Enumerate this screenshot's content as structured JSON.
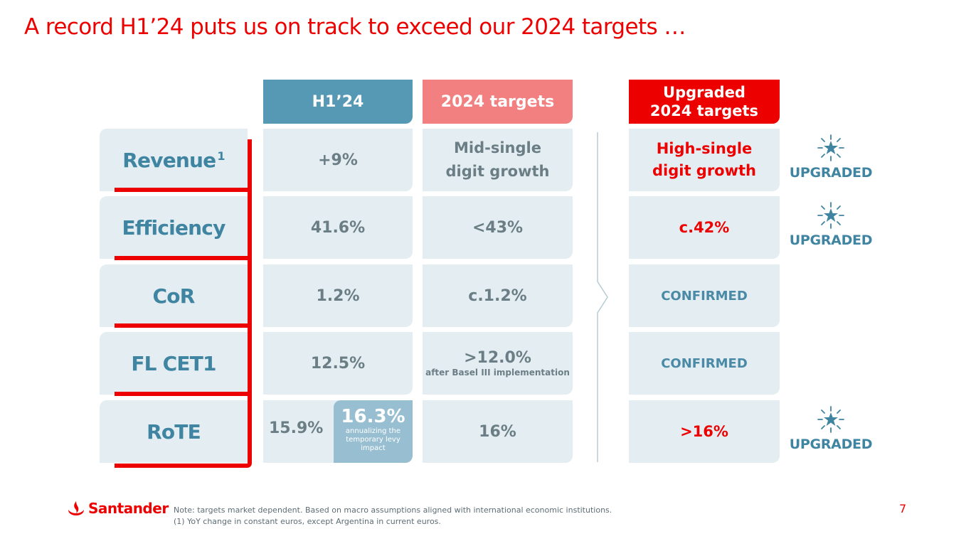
{
  "title": "A record H1’24 puts us on track to exceed our 2024 targets …",
  "headers": {
    "h1": "H1’24",
    "targets": "2024 targets",
    "upgraded_line1": "Upgraded",
    "upgraded_line2": "2024 targets"
  },
  "rows": [
    {
      "label": "Revenue",
      "sup": "1",
      "h1": "+9%",
      "target_line1": "Mid-single",
      "target_line2": "digit growth",
      "upgraded_line1": "High-single",
      "upgraded_line2": "digit growth",
      "badge": "UPGRADED"
    },
    {
      "label": "Efficiency",
      "h1": "41.6%",
      "target": "<43%",
      "upgraded": "c.42%",
      "badge": "UPGRADED"
    },
    {
      "label": "CoR",
      "h1": "1.2%",
      "target": "c.1.2%",
      "upgraded": "CONFIRMED"
    },
    {
      "label": "FL CET1",
      "h1": "12.5%",
      "target": ">12.0%",
      "target_note": "after Basel III implementation",
      "upgraded": "CONFIRMED"
    },
    {
      "label": "RoTE",
      "h1": "15.9%",
      "h1_adjusted": "16.3%",
      "h1_adjusted_note": "annualizing the temporary levy impact",
      "target": "16%",
      "upgraded": ">16%",
      "badge": "UPGRADED"
    }
  ],
  "footer": {
    "logo_text": "Santander",
    "note_line1": "Note: targets market dependent. Based on macro assumptions aligned with international economic institutions.",
    "note_line2": "(1) YoY change in constant euros, except Argentina in current euros.",
    "page_number": "7"
  },
  "colors": {
    "brand_red": "#ec0000",
    "h1_blue": "#5599b4",
    "target_pink": "#f28080",
    "cell_bg": "#e4eef2",
    "label_blue": "#3f85a2"
  },
  "icons": [
    "star-burst-icon",
    "flame-logo-icon"
  ]
}
